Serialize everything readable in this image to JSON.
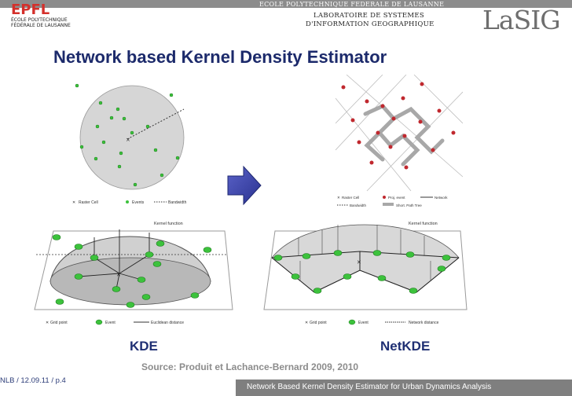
{
  "header": {
    "logo_text": "EPFL",
    "logo_subtitle_line1": "ÉCOLE POLYTECHNIQUE",
    "logo_subtitle_line2": "FÉDÉRALE DE LAUSANNE",
    "school_name": "ECOLE POLYTECHNIQUE FEDERALE DE LAUSANNE",
    "lab_line1": "LABORATOIRE DE SYSTEMES",
    "lab_line2": "D'INFORMATION GEOGRAPHIQUE",
    "lab_logo": "LaSIG"
  },
  "slide": {
    "title": "Network based Kernel Density Estimator",
    "kde_label": "KDE",
    "netkde_label": "NetKDE",
    "source": "Source: Produit et Lachance-Bernard 2009, 2010"
  },
  "figures": {
    "kde_top_legend": {
      "raster": "Raster Cell",
      "events": "Events",
      "bandwidth": "Bandwidth"
    },
    "netkde_top_legend": {
      "raster": "Raster Cell",
      "proj": "Proj. event",
      "network": "Network",
      "bandwidth": "Bandwidth",
      "short_path": "Short. Path Tree"
    },
    "kde_bottom": {
      "kernel": "Kernel function",
      "grid": "Grid point",
      "event": "Event",
      "distance": "Euclidean distance"
    },
    "netkde_bottom": {
      "kernel": "Kernel function",
      "grid": "Grid point",
      "event": "Event",
      "distance": "Network distance"
    },
    "arrow_icon": "right-arrow-icon",
    "colors": {
      "event": "#2db82d",
      "proj_event": "#c0282e",
      "title": "#1c2a6b"
    }
  },
  "footer": {
    "left": "NLB / 12.09.11 / p.4",
    "right": "Network Based Kernel Density Estimator for Urban Dynamics Analysis"
  }
}
